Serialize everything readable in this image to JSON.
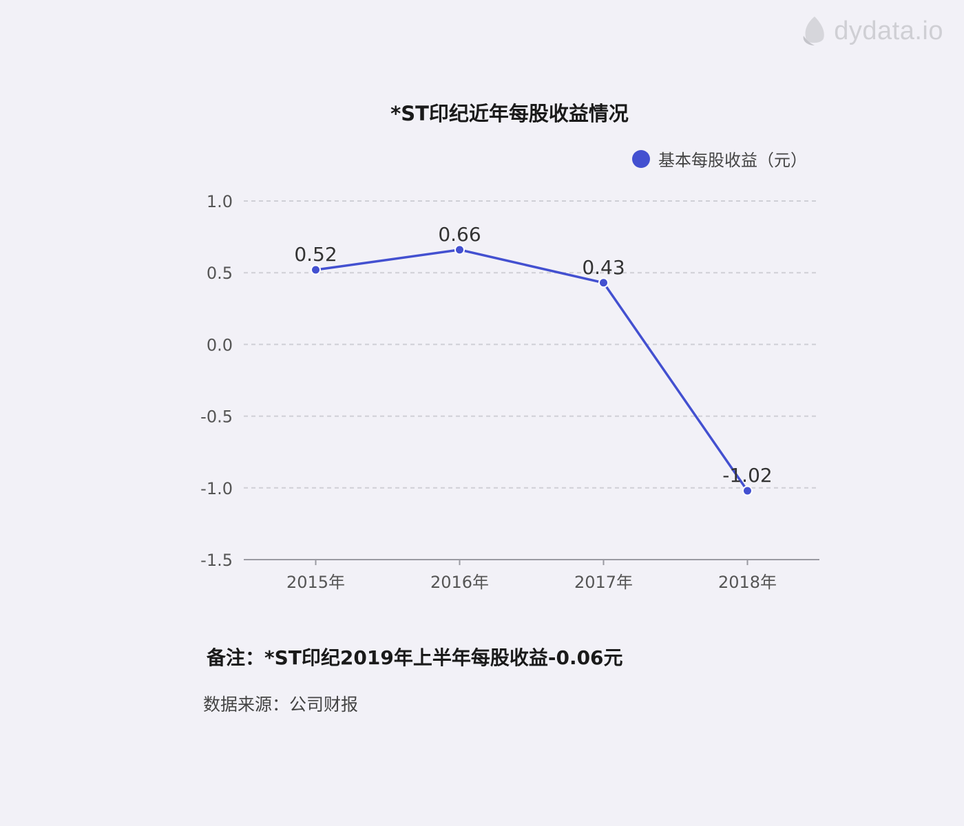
{
  "brand": {
    "name": "dydata.io",
    "icon": "leaf-icon"
  },
  "colors": {
    "series": "#4350d0",
    "grid": "#cfcfd6",
    "axis": "#9a9aa2",
    "text": "#555555"
  },
  "chart_data": {
    "type": "line",
    "title": "*ST印纪近年每股收益情况",
    "categories": [
      "2015年",
      "2016年",
      "2017年",
      "2018年"
    ],
    "series": [
      {
        "name": "基本每股收益（元）",
        "values": [
          0.52,
          0.66,
          0.43,
          -1.02
        ]
      }
    ],
    "ylim": [
      -1.5,
      1.0
    ],
    "yticks": [
      "1.0",
      "0.5",
      "0.0",
      "-0.5",
      "-1.0",
      "-1.5"
    ],
    "data_labels": [
      "0.52",
      "0.66",
      "0.43",
      "-1.02"
    ],
    "grid": true,
    "legend": "top-right"
  },
  "note": "备注：*ST印纪2019年上半年每股收益-0.06元",
  "source": "数据来源：公司财报"
}
